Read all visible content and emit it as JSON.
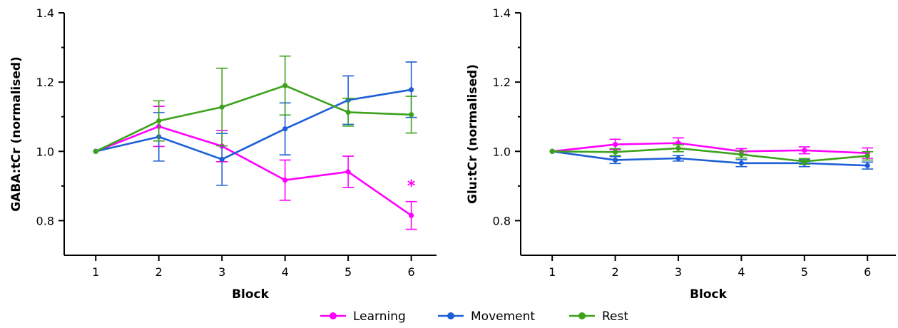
{
  "chart_data": [
    {
      "type": "line",
      "title": "",
      "xlabel": "Block",
      "ylabel": "GABA:tCr (normalised)",
      "x": [
        1,
        2,
        3,
        4,
        5,
        6
      ],
      "xlim": [
        0.5,
        6.4
      ],
      "ylim": [
        0.7,
        1.4
      ],
      "yticks": [
        0.8,
        1.0,
        1.2,
        1.4
      ],
      "ytick_labels": [
        "0.8",
        "1.0",
        "1.2",
        "1.4"
      ],
      "xtick_labels": [
        "1",
        "2",
        "3",
        "4",
        "5",
        "6"
      ],
      "grid": false,
      "series": [
        {
          "name": "Learning",
          "color": "#ff00ff",
          "values": [
            1.0,
            1.072,
            1.015,
            0.917,
            0.941,
            0.815
          ],
          "err": [
            0,
            0.058,
            0.045,
            0.058,
            0.045,
            0.04
          ]
        },
        {
          "name": "Movement",
          "color": "#1d5fd6",
          "values": [
            1.0,
            1.042,
            0.977,
            1.065,
            1.148,
            1.178
          ],
          "err": [
            0,
            0.07,
            0.075,
            0.075,
            0.07,
            0.08
          ]
        },
        {
          "name": "Rest",
          "color": "#3da21b",
          "values": [
            1.0,
            1.088,
            1.128,
            1.19,
            1.113,
            1.106
          ],
          "err": [
            0,
            0.058,
            0.112,
            0.085,
            0.04,
            0.053
          ]
        }
      ],
      "annotations": [
        {
          "text": "*",
          "x": 6,
          "y": 0.885,
          "color": "#ff00ff"
        }
      ]
    },
    {
      "type": "line",
      "title": "",
      "xlabel": "Block",
      "ylabel": "Glu:tCr (normalised)",
      "x": [
        1,
        2,
        3,
        4,
        5,
        6
      ],
      "xlim": [
        0.5,
        6.45
      ],
      "ylim": [
        0.7,
        1.4
      ],
      "yticks": [
        0.8,
        1.0,
        1.2,
        1.4
      ],
      "ytick_labels": [
        "0.8",
        "1.0",
        "1.2",
        "1.4"
      ],
      "xtick_labels": [
        "1",
        "2",
        "3",
        "4",
        "5",
        "6"
      ],
      "grid": false,
      "series": [
        {
          "name": "Learning",
          "color": "#ff00ff",
          "values": [
            1.0,
            1.02,
            1.024,
            1.0,
            1.003,
            0.995
          ],
          "err": [
            0,
            0.015,
            0.015,
            0.008,
            0.01,
            0.015
          ]
        },
        {
          "name": "Movement",
          "color": "#1d5fd6",
          "values": [
            1.0,
            0.975,
            0.98,
            0.966,
            0.966,
            0.959
          ],
          "err": [
            0,
            0.01,
            0.008,
            0.01,
            0.01,
            0.01
          ]
        },
        {
          "name": "Rest",
          "color": "#3da21b",
          "values": [
            1.0,
            0.998,
            1.009,
            0.991,
            0.971,
            0.987
          ],
          "err": [
            0,
            0.01,
            0.01,
            0.01,
            0.008,
            0.012
          ]
        }
      ]
    }
  ],
  "legend": {
    "placement": "bottom-center",
    "items": [
      {
        "label": "Learning",
        "color": "#ff00ff"
      },
      {
        "label": "Movement",
        "color": "#1d5fd6"
      },
      {
        "label": "Rest",
        "color": "#3da21b"
      }
    ]
  }
}
